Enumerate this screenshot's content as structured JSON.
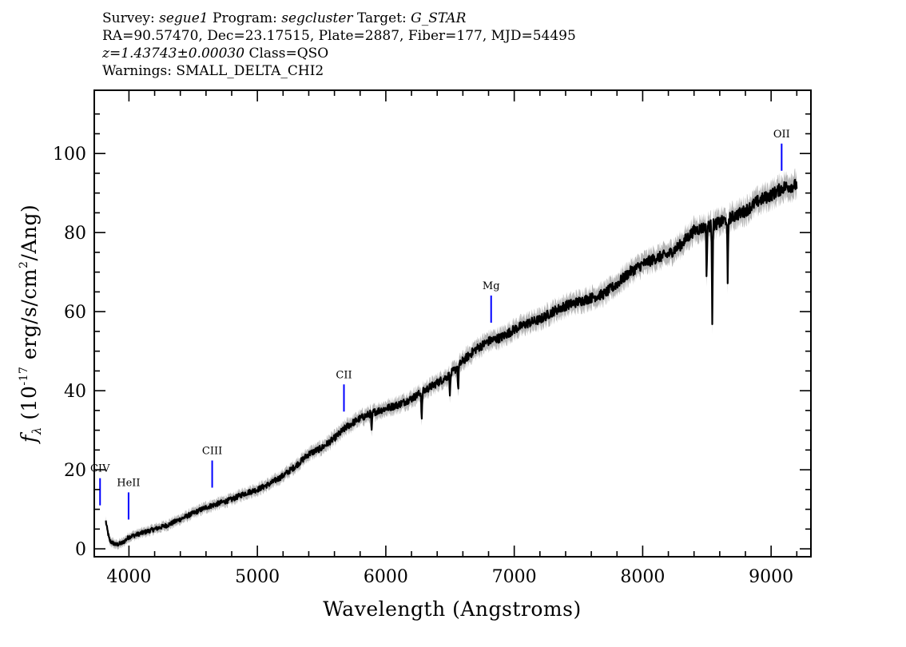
{
  "header": {
    "line1": {
      "survey_label": "Survey:",
      "survey": "segue1",
      "program_label": "Program:",
      "program": "segcluster",
      "target_label": "Target:",
      "target": "G_STAR"
    },
    "line2": "RA=90.57470, Dec=23.17515, Plate=2887, Fiber=177, MJD=54495",
    "line3": {
      "redshift": "z=1.43743±0.00030",
      "class": "Class=QSO"
    },
    "line4": "Warnings: SMALL_DELTA_CHI2"
  },
  "colors": {
    "flux": "#000000",
    "error_band": "#b4b4b4",
    "line_marker": "#0000ff"
  },
  "chart_data": {
    "type": "line",
    "xlabel": "Wavelength (Angstroms)",
    "ylabel": "f_λ (10^-17 erg/s/cm^2/Ang)",
    "xlim": [
      3730,
      9310
    ],
    "ylim": [
      -2,
      116
    ],
    "xticks": [
      4000,
      5000,
      6000,
      7000,
      8000,
      9000
    ],
    "yticks": [
      0,
      20,
      40,
      60,
      80,
      100
    ],
    "series": [
      {
        "x": [
          3820,
          3830,
          3850,
          3900,
          3950,
          4000,
          4100,
          4200,
          4300,
          4400,
          4500,
          4600,
          4700,
          4800,
          4900,
          5000,
          5100,
          5200,
          5300,
          5400,
          5500,
          5600,
          5700,
          5800,
          5900,
          6000,
          6100,
          6200,
          6300,
          6400,
          6500,
          6600,
          6700,
          6800,
          6900,
          7000,
          7100,
          7200,
          7300,
          7400,
          7500,
          7600,
          7700,
          7800,
          7900,
          8000,
          8100,
          8200,
          8300,
          8400,
          8500,
          8600,
          8700,
          8800,
          8900,
          9000,
          9100,
          9200
        ],
        "y": [
          7,
          5,
          2,
          1,
          1.5,
          3,
          4,
          5,
          6,
          7.5,
          9,
          10.5,
          11.5,
          12.5,
          14,
          15,
          16.5,
          18.5,
          21,
          24,
          25.5,
          28,
          31,
          33,
          34.5,
          35.5,
          36.5,
          38,
          40,
          42,
          44,
          47.5,
          50.5,
          52.5,
          53.5,
          55.5,
          57,
          58,
          60,
          61.5,
          62.5,
          63.5,
          64.5,
          67,
          70,
          72,
          73.5,
          74.5,
          77,
          80.5,
          81.5,
          82.5,
          84,
          85.5,
          88,
          89.5,
          91.5,
          92
        ]
      }
    ],
    "absorption_features": [
      {
        "x": 8498,
        "depth": 13
      },
      {
        "x": 8542,
        "depth": 24
      },
      {
        "x": 8662,
        "depth": 17
      },
      {
        "x": 6563,
        "depth": 7
      },
      {
        "x": 6280,
        "depth": 7
      },
      {
        "x": 6500,
        "depth": 5
      },
      {
        "x": 5890,
        "depth": 5
      }
    ],
    "emission_lines": [
      {
        "name": "CIV",
        "x": 3775
      },
      {
        "name": "HeII",
        "x": 3997
      },
      {
        "name": "CIII",
        "x": 4648
      },
      {
        "name": "CII",
        "x": 5674
      },
      {
        "name": "Mg",
        "x": 6820
      },
      {
        "name": "OII",
        "x": 9082
      }
    ]
  }
}
